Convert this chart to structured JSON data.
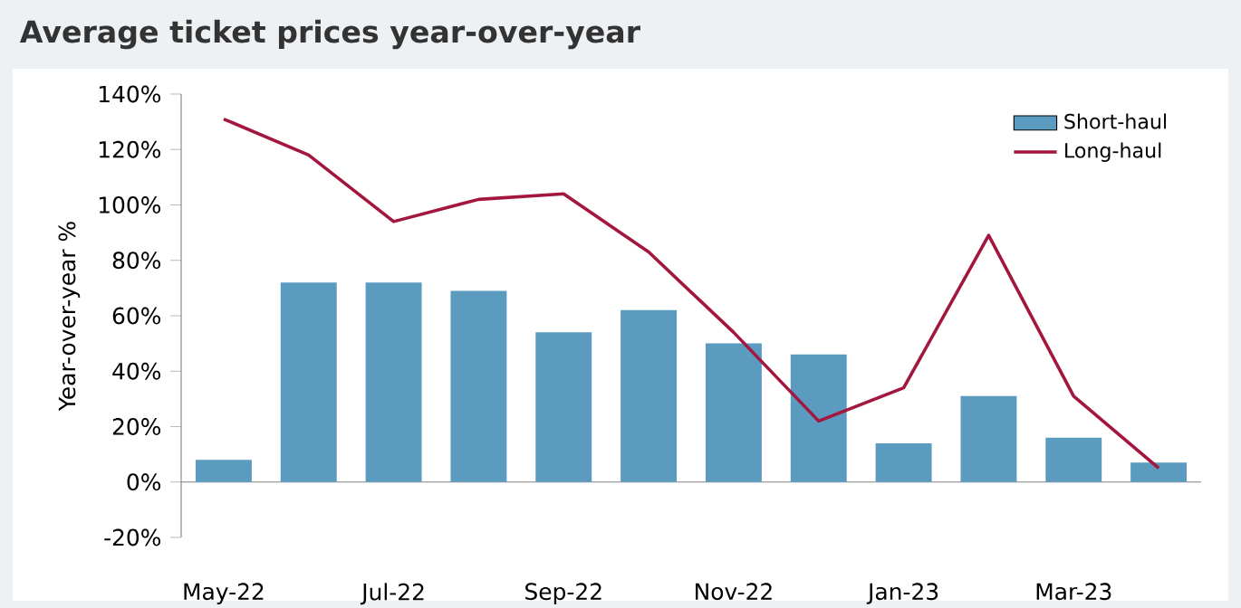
{
  "chart_data": {
    "type": "bar",
    "title": "Average ticket prices year-over-year",
    "ylabel": "Year-over-year %",
    "categories": [
      "May-22",
      null,
      "Jul-22",
      null,
      "Sep-22",
      null,
      "Nov-22",
      null,
      "Jan-23",
      null,
      "Mar-23",
      null
    ],
    "series": [
      {
        "name": "Short-haul",
        "color": "#5b9bc0",
        "values": [
          8,
          72,
          72,
          69,
          54,
          62,
          50,
          46,
          14,
          31,
          16,
          7
        ]
      },
      {
        "name": "Long-haul",
        "type": "line",
        "color": "#a3163d",
        "values": [
          131,
          118,
          94,
          102,
          104,
          83,
          54,
          22,
          34,
          89,
          31,
          5
        ]
      }
    ],
    "ylim": [
      -20,
      140
    ],
    "yticks": [
      {
        "value": -20,
        "label": "-20%"
      },
      {
        "value": 0,
        "label": "0%"
      },
      {
        "value": 20,
        "label": "20%"
      },
      {
        "value": 40,
        "label": "40%"
      },
      {
        "value": 60,
        "label": "60%"
      },
      {
        "value": 80,
        "label": "80%"
      },
      {
        "value": 100,
        "label": "100%"
      },
      {
        "value": 120,
        "label": "120%"
      },
      {
        "value": 140,
        "label": "140%"
      }
    ],
    "legend": "top right"
  }
}
